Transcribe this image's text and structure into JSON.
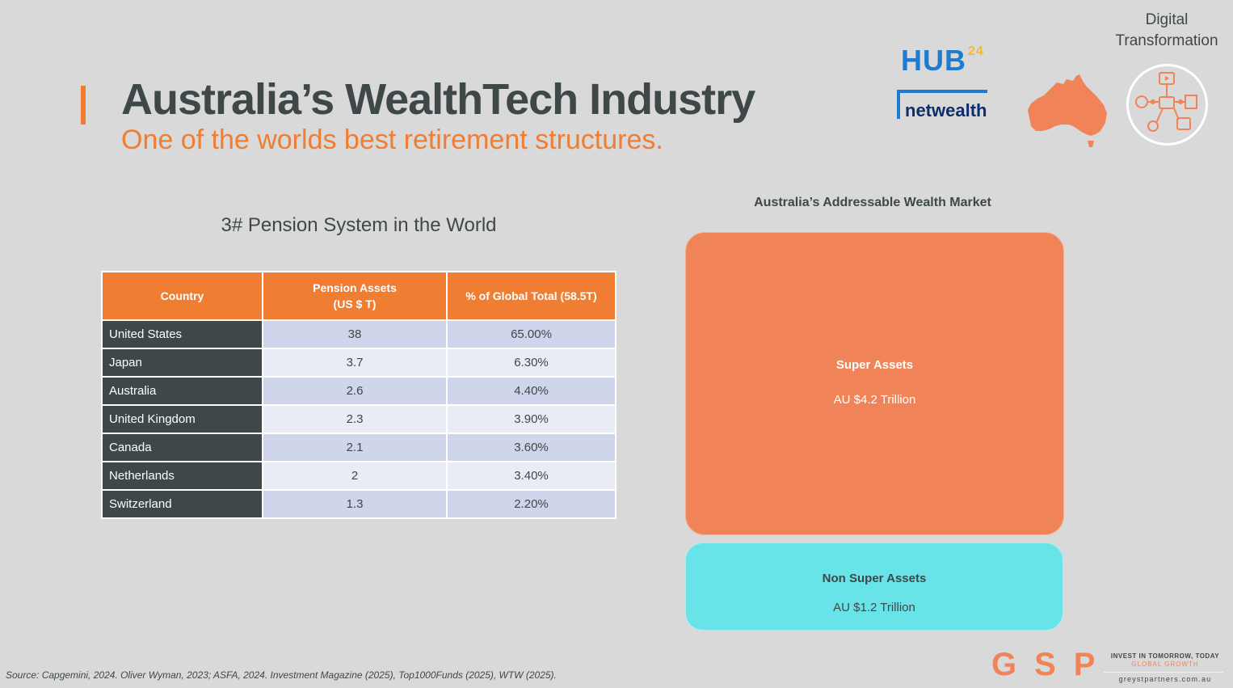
{
  "header": {
    "title": "Australia’s WealthTech Industry",
    "subtitle": "One of the worlds best retirement structures."
  },
  "logos": {
    "hub24_main": "HUB",
    "hub24_sup": "24",
    "netwealth": "netwealth"
  },
  "digital_transformation": {
    "line1": "Digital",
    "line2": "Transformation"
  },
  "pension_table": {
    "title": "3# Pension System in the World",
    "headers": {
      "country": "Country",
      "assets_line1": "Pension Assets",
      "assets_line2": "(US $ T)",
      "share": "% of Global Total (58.5T)"
    },
    "rows": [
      {
        "country": "United States",
        "assets": "38",
        "share": "65.00%"
      },
      {
        "country": "Japan",
        "assets": "3.7",
        "share": "6.30%"
      },
      {
        "country": "Australia",
        "assets": "2.6",
        "share": "4.40%"
      },
      {
        "country": "United Kingdom",
        "assets": "2.3",
        "share": "3.90%"
      },
      {
        "country": "Canada",
        "assets": "2.1",
        "share": "3.60%"
      },
      {
        "country": "Netherlands",
        "assets": "2",
        "share": "3.40%"
      },
      {
        "country": "Switzerland",
        "assets": "1.3",
        "share": "2.20%"
      }
    ]
  },
  "wealth_market": {
    "title": "Australia’s Addressable Wealth Market",
    "super": {
      "label": "Super Assets",
      "value": "AU $4.2 Trillion",
      "amount_trillion": 4.2
    },
    "non_super": {
      "label": "Non Super Assets",
      "value": "AU $1.2 Trillion",
      "amount_trillion": 1.2
    }
  },
  "footer": {
    "source": "Source: Capgemini, 2024. Oliver Wyman, 2023; ASFA, 2024. Investment Magazine (2025), Top1000Funds (2025), WTW (2025).",
    "gsp": "GSP",
    "tagline1": "INVEST IN TOMORROW, TODAY",
    "tagline2": "GLOBAL GROWTH",
    "website": "greystpartners.com.au"
  },
  "colors": {
    "accent": "#ef7d32",
    "dark": "#3f4848",
    "super": "#f08458",
    "non_super": "#68e3e8",
    "background": "#d9d9d9"
  }
}
